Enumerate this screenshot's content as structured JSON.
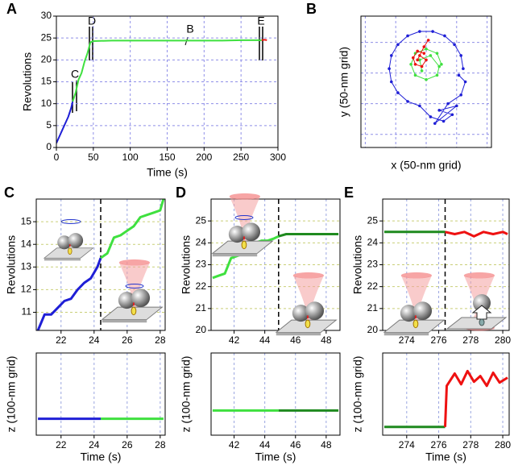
{
  "chart_data": [
    {
      "type": "line",
      "panel_label": "A",
      "xlabel": "Time (s)",
      "ylabel": "Revolutions",
      "xlim": [
        0,
        300
      ],
      "ylim": [
        0,
        30
      ],
      "xticks": [
        0,
        50,
        100,
        150,
        200,
        250,
        300
      ],
      "yticks": [
        0,
        5,
        10,
        15,
        20,
        25,
        30
      ],
      "grid": true,
      "xgrid_color": "#8f8fe8",
      "ygrid_color": "#8f8fe8",
      "annotations": [
        "C",
        "D",
        "B",
        "E"
      ],
      "x": [
        0,
        4,
        8,
        12,
        16,
        20,
        22,
        26,
        30,
        34,
        38,
        42,
        46,
        50,
        75,
        100,
        125,
        150,
        175,
        200,
        225,
        250,
        275,
        278,
        282,
        285
      ],
      "series": [
        {
          "color": "#1f1fd6",
          "values": [
            1,
            2.5,
            4,
            5.5,
            7,
            9,
            10.5,
            null,
            null,
            null,
            null,
            null,
            null,
            null,
            null,
            null,
            null,
            null,
            null,
            null,
            null,
            null,
            null,
            null,
            null,
            null
          ]
        },
        {
          "color": "#3fe03f",
          "values": [
            null,
            null,
            null,
            null,
            null,
            null,
            10.5,
            12.5,
            15.5,
            17,
            19.5,
            21.5,
            24,
            24.3,
            24.4,
            24.4,
            24.4,
            24.4,
            24.4,
            24.4,
            24.4,
            24.5,
            24.5,
            24.5,
            null,
            null
          ]
        },
        {
          "color": "#ee1111",
          "values": [
            null,
            null,
            null,
            null,
            null,
            null,
            null,
            null,
            null,
            null,
            null,
            null,
            null,
            null,
            null,
            null,
            null,
            null,
            null,
            null,
            null,
            null,
            null,
            24.5,
            24.6,
            24.5
          ]
        }
      ]
    },
    {
      "type": "scatter",
      "panel_label": "B",
      "xlabel": "x (50-nm grid)",
      "ylabel": "y (50-nm grid)",
      "xlim": [
        0,
        6
      ],
      "ylim": [
        0,
        6
      ],
      "xgrid": [
        0.2,
        1.6,
        3.0,
        4.4,
        5.8
      ],
      "ygrid": [
        0.6,
        2.0,
        3.4,
        4.8
      ],
      "grid": true,
      "xgrid_color": "#8f8fe8",
      "ygrid_color": "#8f8fe8",
      "series": [
        {
          "color": "#1f1fd6",
          "x": [
            4.7,
            4.6,
            4.3,
            3.85,
            3.3,
            2.7,
            2.15,
            1.7,
            1.4,
            1.3,
            1.4,
            1.7,
            2.15,
            2.7,
            3.2,
            3.8,
            4.2,
            3.6,
            4.4,
            3.4,
            4.0,
            4.6,
            4.8,
            4.5
          ],
          "values": [
            3.6,
            4.2,
            4.7,
            5.1,
            5.3,
            5.3,
            5.1,
            4.7,
            4.2,
            3.6,
            3.0,
            2.5,
            2.1,
            1.9,
            1.4,
            1.2,
            1.5,
            1.7,
            1.9,
            1.1,
            2.0,
            2.4,
            3.0,
            3.3
          ]
        },
        {
          "color": "#3fe03f",
          "x": [
            3.7,
            3.5,
            3.0,
            2.5,
            2.3,
            2.5,
            3.0,
            3.5,
            3.6,
            3.2,
            2.7,
            2.8
          ],
          "values": [
            3.8,
            4.3,
            4.5,
            4.3,
            3.8,
            3.3,
            3.1,
            3.3,
            3.7,
            4.2,
            4.0,
            3.5
          ]
        },
        {
          "color": "#ee1111",
          "x": [
            2.9,
            2.6,
            2.4,
            2.5,
            2.8,
            3.0,
            2.7,
            2.6,
            2.9,
            3.1
          ],
          "values": [
            4.3,
            4.4,
            4.1,
            3.8,
            3.7,
            4.0,
            4.2,
            4.0,
            4.6,
            4.9
          ]
        }
      ]
    },
    {
      "type": "line",
      "panel_label": "C",
      "ylabel": "Revolutions",
      "xlim": [
        20.5,
        28.3
      ],
      "ylim": [
        10.2,
        16
      ],
      "xticks": [
        22,
        24,
        26,
        28
      ],
      "yticks": [
        11,
        12,
        13,
        14,
        15
      ],
      "grid": true,
      "xgrid_color": "#9aa6e0",
      "ygrid_color": "#c9cf78",
      "dashed_line_x": 24.4,
      "x": [
        20.6,
        21,
        21.4,
        21.8,
        22.2,
        22.6,
        23,
        23.4,
        23.8,
        24.2,
        24.4,
        24.8,
        25.2,
        25.6,
        26,
        26.4,
        26.8,
        27.2,
        27.6,
        28,
        28.2
      ],
      "series": [
        {
          "color": "#1f1fd6",
          "values": [
            10.2,
            10.9,
            10.9,
            11.2,
            11.5,
            11.6,
            12,
            12.3,
            12.5,
            13,
            13.4,
            null,
            null,
            null,
            null,
            null,
            null,
            null,
            null,
            null,
            null
          ]
        },
        {
          "color": "#3fe03f",
          "values": [
            null,
            null,
            null,
            null,
            null,
            null,
            null,
            null,
            null,
            null,
            13.4,
            13.6,
            14.3,
            14.4,
            14.6,
            14.8,
            15.2,
            15.3,
            15.4,
            15.5,
            16.0
          ]
        }
      ]
    },
    {
      "type": "line",
      "xlabel": "Time (s)",
      "ylabel": "z (100-nm grid)",
      "xlim": [
        20.5,
        28.3
      ],
      "ylim": [
        0,
        10
      ],
      "xticks": [
        22,
        24,
        26,
        28
      ],
      "grid": true,
      "xgrid_color": "#9aa6e0",
      "x": [
        20.6,
        22.4,
        24.4,
        26.4,
        28.2
      ],
      "series": [
        {
          "color": "#1f1fd6",
          "values": [
            2,
            2,
            2,
            null,
            null
          ]
        },
        {
          "color": "#3fe03f",
          "values": [
            null,
            null,
            2,
            2,
            2
          ]
        }
      ]
    },
    {
      "type": "line",
      "panel_label": "D",
      "ylabel": "Revolutions",
      "xlim": [
        40.5,
        48.9
      ],
      "ylim": [
        20,
        26
      ],
      "xticks": [
        42,
        44,
        46,
        48
      ],
      "yticks": [
        20,
        21,
        22,
        23,
        24,
        25
      ],
      "grid": true,
      "xgrid_color": "#9aa6e0",
      "ygrid_color": "#c9cf78",
      "dashed_line_x": 44.9,
      "x": [
        40.6,
        41,
        41.4,
        41.8,
        42.2,
        42.6,
        43,
        43.4,
        43.8,
        44.2,
        44.6,
        44.9,
        45.4,
        46,
        46.6,
        47.2,
        47.8,
        48.4,
        48.8
      ],
      "series": [
        {
          "color": "#3fe03f",
          "values": [
            22.4,
            22.5,
            22.6,
            23.3,
            23.4,
            23.5,
            23.6,
            24.0,
            24.1,
            24.1,
            24.2,
            24.3,
            null,
            null,
            null,
            null,
            null,
            null,
            null
          ]
        },
        {
          "color": "#1f8a1f",
          "values": [
            null,
            null,
            null,
            null,
            null,
            null,
            null,
            null,
            null,
            null,
            null,
            24.3,
            24.4,
            24.4,
            24.4,
            24.4,
            24.4,
            24.4,
            24.4
          ]
        }
      ]
    },
    {
      "type": "line",
      "xlabel": "Time (s)",
      "ylabel": "z (100-nm grid)",
      "xlim": [
        40.5,
        48.9
      ],
      "ylim": [
        0,
        10
      ],
      "xticks": [
        42,
        44,
        46,
        48
      ],
      "grid": true,
      "xgrid_color": "#9aa6e0",
      "x": [
        40.6,
        42.8,
        44.9,
        46.8,
        48.8
      ],
      "series": [
        {
          "color": "#3fe03f",
          "values": [
            3,
            3,
            3,
            null,
            null
          ]
        },
        {
          "color": "#1f8a1f",
          "values": [
            null,
            null,
            3,
            3,
            3
          ]
        }
      ]
    },
    {
      "type": "line",
      "panel_label": "E",
      "ylabel": "Revolutions",
      "xlim": [
        272.5,
        280.4
      ],
      "ylim": [
        20,
        26
      ],
      "xticks": [
        274,
        276,
        278,
        280
      ],
      "yticks": [
        20,
        21,
        22,
        23,
        24,
        25
      ],
      "grid": true,
      "xgrid_color": "#9aa6e0",
      "ygrid_color": "#c9cf78",
      "dashed_line_x": 276.4,
      "x": [
        272.6,
        273.4,
        274.2,
        275,
        275.8,
        276.4,
        277,
        277.6,
        278.2,
        278.8,
        279.4,
        280,
        280.3
      ],
      "series": [
        {
          "color": "#1f8a1f",
          "values": [
            24.5,
            24.5,
            24.5,
            24.5,
            24.5,
            24.5,
            null,
            null,
            null,
            null,
            null,
            null,
            null
          ]
        },
        {
          "color": "#ee1111",
          "values": [
            null,
            null,
            null,
            null,
            null,
            24.5,
            24.4,
            24.5,
            24.3,
            24.5,
            24.4,
            24.5,
            24.4
          ]
        }
      ]
    },
    {
      "type": "line",
      "xlabel": "Time (s)",
      "ylabel": "z (100-nm grid)",
      "xlim": [
        272.5,
        280.4
      ],
      "ylim": [
        0,
        10
      ],
      "xticks": [
        274,
        276,
        278,
        280
      ],
      "grid": true,
      "xgrid_color": "#9aa6e0",
      "x": [
        272.6,
        274,
        275.5,
        276.4,
        276.5,
        277,
        277.4,
        277.8,
        278.2,
        278.6,
        279,
        279.4,
        279.8,
        280.3
      ],
      "series": [
        {
          "color": "#1f8a1f",
          "values": [
            1,
            1,
            1,
            1,
            null,
            null,
            null,
            null,
            null,
            null,
            null,
            null,
            null,
            null
          ]
        },
        {
          "color": "#ee1111",
          "values": [
            null,
            null,
            null,
            1,
            6,
            7.5,
            6.2,
            7.8,
            6.5,
            7.2,
            6,
            7.6,
            6.4,
            7
          ]
        }
      ]
    }
  ]
}
